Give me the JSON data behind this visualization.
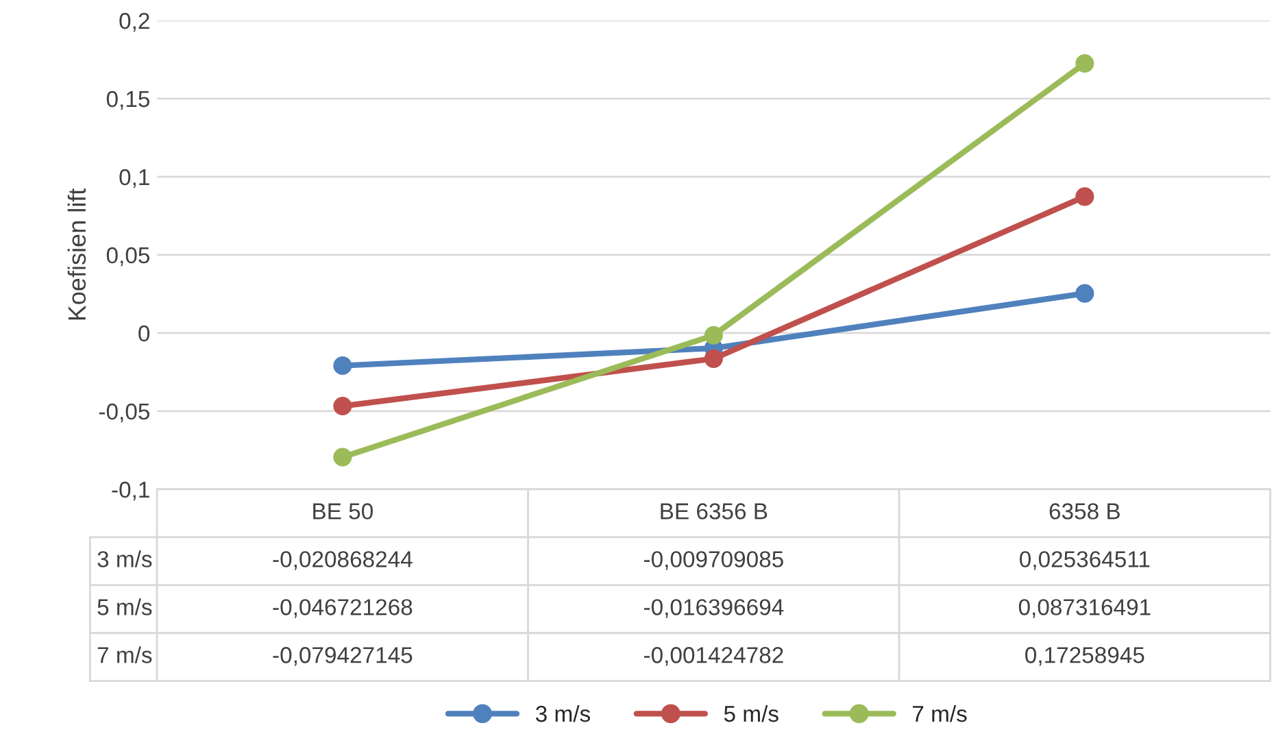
{
  "chart_data": {
    "type": "line",
    "ylabel": "Koefisien lift",
    "categories": [
      "BE 50",
      "BE 6356 B",
      "6358 B"
    ],
    "series": [
      {
        "name": "3 m/s",
        "color": "#4f81bd",
        "values": [
          -0.020868244,
          -0.009709085,
          0.025364511
        ],
        "value_labels": [
          "-0,020868244",
          "-0,009709085",
          "0,025364511"
        ]
      },
      {
        "name": "5 m/s",
        "color": "#c0504d",
        "values": [
          -0.046721268,
          -0.016396694,
          0.087316491
        ],
        "value_labels": [
          "-0,046721268",
          "-0,016396694",
          "0,087316491"
        ]
      },
      {
        "name": "7 m/s",
        "color": "#9bbb59",
        "values": [
          -0.079427145,
          -0.001424782,
          0.17258945
        ],
        "value_labels": [
          "-0,079427145",
          "-0,001424782",
          "0,17258945"
        ]
      }
    ],
    "ylim": [
      -0.1,
      0.2
    ],
    "yticks": [
      {
        "value": -0.1,
        "label": "-0,1"
      },
      {
        "value": -0.05,
        "label": "-0,05"
      },
      {
        "value": 0,
        "label": "0"
      },
      {
        "value": 0.05,
        "label": "0,05"
      },
      {
        "value": 0.1,
        "label": "0,1"
      },
      {
        "value": 0.15,
        "label": "0,15"
      },
      {
        "value": 0.2,
        "label": "0,2"
      }
    ],
    "grid": "y",
    "legend": "bottom",
    "marker": "circle",
    "line_style": "solid"
  }
}
